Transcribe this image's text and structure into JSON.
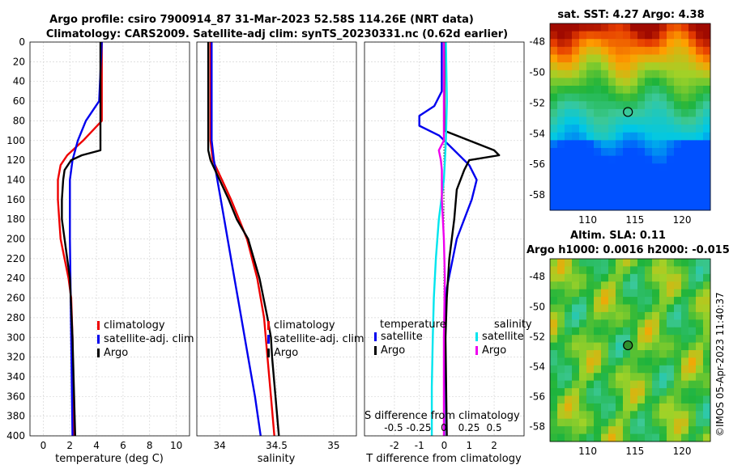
{
  "title_line1": "Argo profile: csiro 7900914_87 31-Mar-2023 52.58S 114.26E (NRT data)",
  "title_line2": "Climatology: CARS2009. Satellite-adj clim: synTS_20230331.nc (0.62d earlier)",
  "depth_ticks": [
    "0",
    "20",
    "40",
    "60",
    "80",
    "100",
    "120",
    "140",
    "160",
    "180",
    "200",
    "220",
    "240",
    "260",
    "280",
    "300",
    "320",
    "340",
    "360",
    "380",
    "400"
  ],
  "colors": {
    "climatology": "#ee0000",
    "satellite": "#0000ee",
    "argo": "#000000",
    "satellite_salinity": "#00e5ee",
    "argo_salinity": "#ee00ee"
  },
  "chart_data": [
    {
      "type": "line",
      "name": "temperature",
      "xlabel": "temperature (deg C)",
      "ylabel": "depth",
      "xlim": [
        -1,
        11
      ],
      "ylim": [
        400,
        0
      ],
      "xticks": [
        "0",
        "2",
        "4",
        "6",
        "8",
        "10"
      ],
      "legend": [
        "climatology",
        "satellite-adj. clim",
        "Argo"
      ],
      "series": [
        {
          "name": "climatology",
          "depth": [
            0,
            80,
            100,
            115,
            125,
            140,
            160,
            180,
            200,
            220,
            240,
            260,
            300,
            400
          ],
          "values": [
            4.4,
            4.4,
            3.0,
            1.8,
            1.3,
            1.1,
            1.1,
            1.2,
            1.3,
            1.6,
            1.9,
            2.1,
            2.2,
            2.3
          ]
        },
        {
          "name": "satellite-adj. clim",
          "depth": [
            0,
            60,
            80,
            100,
            120,
            140,
            160,
            200,
            300,
            400
          ],
          "values": [
            4.4,
            4.2,
            3.2,
            2.6,
            2.2,
            2.0,
            2.0,
            2.0,
            2.1,
            2.2
          ]
        },
        {
          "name": "Argo",
          "depth": [
            0,
            110,
            115,
            120,
            130,
            140,
            160,
            180,
            200,
            240,
            300,
            400
          ],
          "values": [
            4.3,
            4.3,
            2.9,
            2.1,
            1.6,
            1.5,
            1.4,
            1.4,
            1.6,
            2.0,
            2.2,
            2.4
          ]
        }
      ]
    },
    {
      "type": "line",
      "name": "salinity",
      "xlabel": "salinity",
      "ylabel": "depth",
      "xlim": [
        33.8,
        35.2
      ],
      "ylim": [
        400,
        0
      ],
      "xticks": [
        "34",
        "34.5",
        "35"
      ],
      "legend": [
        "climatology",
        "satellite-adj. clim",
        "Argo"
      ],
      "series": [
        {
          "name": "climatology",
          "depth": [
            0,
            100,
            120,
            140,
            160,
            180,
            200,
            240,
            280,
            320,
            360,
            400
          ],
          "values": [
            33.92,
            33.92,
            33.94,
            34.02,
            34.1,
            34.17,
            34.24,
            34.33,
            34.39,
            34.42,
            34.45,
            34.48
          ]
        },
        {
          "name": "satellite-adj. clim",
          "depth": [
            0,
            100,
            120,
            140,
            160,
            180,
            200,
            240,
            280,
            320,
            360,
            400
          ],
          "values": [
            33.93,
            33.93,
            33.95,
            33.98,
            34.01,
            34.04,
            34.07,
            34.13,
            34.19,
            34.25,
            34.31,
            34.36
          ]
        },
        {
          "name": "Argo",
          "depth": [
            0,
            110,
            120,
            140,
            160,
            180,
            200,
            240,
            280,
            300,
            320,
            360,
            400
          ],
          "values": [
            33.9,
            33.9,
            33.92,
            34.0,
            34.08,
            34.15,
            34.25,
            34.35,
            34.42,
            34.45,
            34.46,
            34.49,
            34.52
          ]
        }
      ]
    },
    {
      "type": "line",
      "name": "difference",
      "xlabel": "T difference from climatology",
      "xlabel_top": "S difference from climatology",
      "xlim": [
        -3.2,
        3.2
      ],
      "ylim": [
        400,
        0
      ],
      "xticks": [
        "-2",
        "-1",
        "0",
        "1",
        "2"
      ],
      "xticks_top": [
        "-0.5",
        "-0.25",
        "0",
        "0.25",
        "0.5"
      ],
      "legend_temperature_title": "temperature",
      "legend_salinity_title": "salinity",
      "legend_temperature": [
        "satellite",
        "Argo"
      ],
      "legend_salinity": [
        "satellite",
        "Argo"
      ],
      "series": [
        {
          "name": "temperature satellite",
          "depth": [
            0,
            50,
            65,
            75,
            85,
            95,
            110,
            125,
            140,
            160,
            200,
            250,
            300,
            400
          ],
          "values": [
            -0.1,
            -0.1,
            -0.4,
            -1.0,
            -1.0,
            -0.2,
            0.4,
            1.0,
            1.3,
            1.1,
            0.5,
            0.1,
            0.0,
            0.0
          ]
        },
        {
          "name": "temperature Argo",
          "depth": [
            0,
            90,
            100,
            110,
            115,
            120,
            130,
            150,
            180,
            220,
            260,
            300,
            400
          ],
          "values": [
            0.0,
            0.0,
            1.0,
            2.0,
            2.2,
            1.0,
            0.8,
            0.5,
            0.4,
            0.2,
            0.1,
            0.05,
            0.1
          ]
        },
        {
          "name": "salinity satellite",
          "depth": [
            0,
            60,
            100,
            140,
            180,
            220,
            260,
            300,
            350,
            400
          ],
          "values": [
            0.02,
            0.03,
            0.02,
            0.0,
            -0.05,
            -0.08,
            -0.1,
            -0.11,
            -0.12,
            -0.12
          ]
        },
        {
          "name": "salinity Argo",
          "depth": [
            0,
            100,
            110,
            120,
            130,
            160,
            200,
            240,
            300,
            400
          ],
          "values": [
            0.0,
            0.0,
            -0.05,
            -0.03,
            -0.02,
            -0.02,
            0.0,
            0.01,
            0.0,
            0.0
          ]
        }
      ]
    },
    {
      "type": "heatmap",
      "name": "sst-map",
      "title": "sat. SST: 4.27 Argo: 4.38",
      "xticks": [
        "110",
        "115",
        "120"
      ],
      "yticks": [
        "-48",
        "-50",
        "-52",
        "-54",
        "-56",
        "-58"
      ],
      "xlim": [
        106,
        123
      ],
      "ylim": [
        -59,
        -46.8
      ],
      "marker": {
        "lon": 114.26,
        "lat": -52.58
      }
    },
    {
      "type": "heatmap",
      "name": "sla-map",
      "title_line1": "Altim. SLA: 0.11",
      "title_line2": "Argo h1000: 0.0016 h2000: -0.015",
      "xticks": [
        "110",
        "115",
        "120"
      ],
      "yticks": [
        "-48",
        "-50",
        "-52",
        "-54",
        "-56",
        "-58"
      ],
      "xlim": [
        106,
        123
      ],
      "ylim": [
        -59,
        -46.8
      ],
      "marker": {
        "lon": 114.26,
        "lat": -52.58
      }
    }
  ],
  "watermark": "©IMOS 05-Apr-2023 11:40:37"
}
